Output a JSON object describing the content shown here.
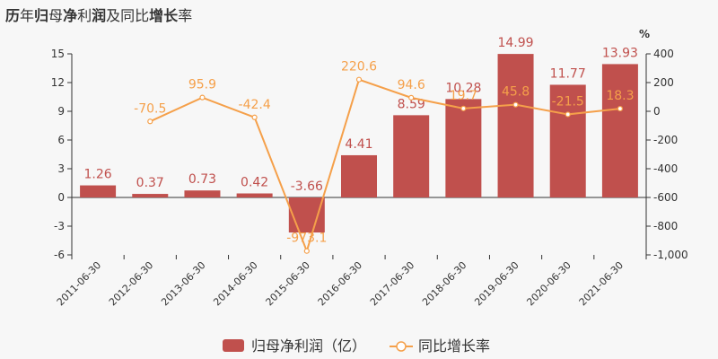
{
  "title": {
    "parts": [
      {
        "text": "历",
        "bold": true
      },
      {
        "text": "年",
        "bold": false
      },
      {
        "text": "归",
        "bold": true
      },
      {
        "text": "母",
        "bold": false
      },
      {
        "text": "净",
        "bold": true
      },
      {
        "text": "利",
        "bold": false
      },
      {
        "text": "润",
        "bold": true
      },
      {
        "text": "及",
        "bold": false
      },
      {
        "text": "同",
        "bold": false
      },
      {
        "text": "比",
        "bold": false
      },
      {
        "text": "增",
        "bold": true
      },
      {
        "text": "长",
        "bold": true
      },
      {
        "text": "率",
        "bold": false
      }
    ]
  },
  "chart_data": {
    "type": "bar",
    "categories": [
      "2011-06-30",
      "2012-06-30",
      "2013-06-30",
      "2014-06-30",
      "2015-06-30",
      "2016-06-30",
      "2017-06-30",
      "2018-06-30",
      "2019-06-30",
      "2020-06-30",
      "2021-06-30"
    ],
    "series": [
      {
        "name": "归母净利润（亿）",
        "type": "bar",
        "color": "#c0504d",
        "values": [
          1.26,
          0.37,
          0.73,
          0.42,
          -3.66,
          4.41,
          8.59,
          10.28,
          14.99,
          11.77,
          13.93
        ],
        "labels": [
          "1.26",
          "0.37",
          "0.73",
          "0.42",
          "-3.66",
          "4.41",
          "8.59",
          "10.28",
          "14.99",
          "11.77",
          "13.93"
        ]
      },
      {
        "name": "同比增长率",
        "type": "line",
        "axis": "right",
        "color": "#f5a04a",
        "values": [
          null,
          -70.5,
          95.9,
          -42.4,
          -973.1,
          220.6,
          94.6,
          19.7,
          45.8,
          -21.5,
          18.3
        ],
        "labels": [
          "",
          "-70.5",
          "95.9",
          "-42.4",
          "-973.1",
          "220.6",
          "94.6",
          "19.7",
          "45.8",
          "-21.5",
          "18.3"
        ]
      }
    ],
    "y_left": {
      "ticks": [
        15,
        12,
        9,
        6,
        3,
        0,
        -3,
        -6
      ],
      "ylim": [
        -6,
        15
      ]
    },
    "y_right": {
      "unit": "%",
      "ticks": [
        400,
        200,
        0,
        -200,
        -400,
        -600,
        -800,
        -1000
      ],
      "labels": [
        "400",
        "200",
        "0",
        "-200",
        "-400",
        "-600",
        "-800",
        "-1,000"
      ],
      "ylim": [
        -1000,
        400
      ]
    },
    "grid": false,
    "legend_position": "bottom-center"
  }
}
